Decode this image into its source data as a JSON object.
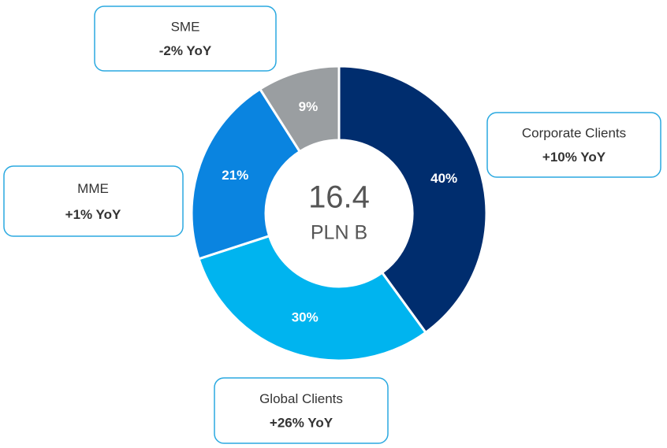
{
  "chart_data": {
    "type": "donut",
    "categories": [
      "Corporate Clients",
      "Global Clients",
      "MME",
      "SME"
    ],
    "values": [
      40,
      30,
      21,
      9
    ],
    "value_labels": [
      "40%",
      "30%",
      "21%",
      "9%"
    ],
    "yoy_labels": [
      "+10% YoY",
      "+26% YoY",
      "+1% YoY",
      "-2% YoY"
    ],
    "colors": [
      "#002d6e",
      "#00b4ef",
      "#0a84e0",
      "#9a9ea1"
    ],
    "center_value": "16.4",
    "center_unit": "PLN B"
  }
}
